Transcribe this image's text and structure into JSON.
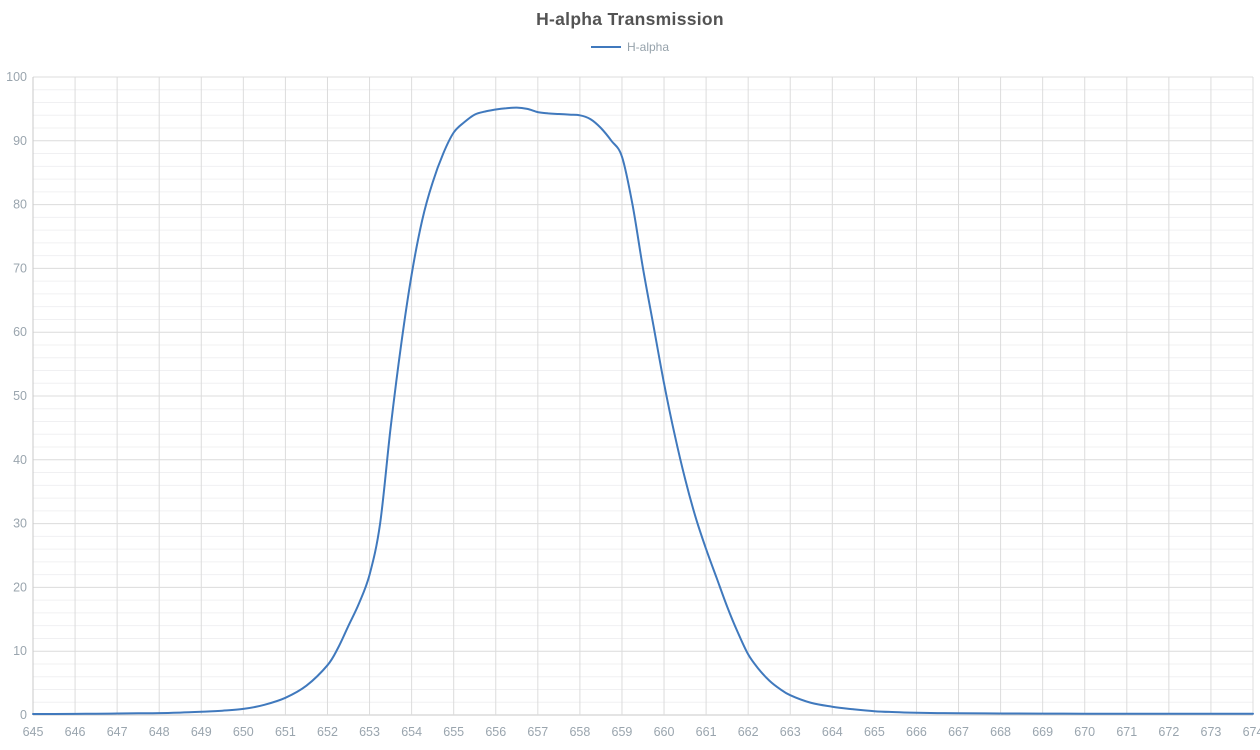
{
  "colors": {
    "series_blue": "#4079bd",
    "title_text": "#535353",
    "legend_text": "#96a2ab",
    "axis_label": "#9aa5ae",
    "grid_major": "#dcdcdc",
    "grid_minor": "#f0f0f2",
    "axis_line": "#c9c9c9",
    "background": "#ffffff"
  },
  "chart_data": {
    "type": "line",
    "title": "H-alpha Transmission",
    "xlabel": "",
    "ylabel": "",
    "xlim": [
      645,
      674
    ],
    "ylim": [
      0,
      100
    ],
    "x_ticks": [
      645,
      646,
      647,
      648,
      649,
      650,
      651,
      652,
      653,
      654,
      655,
      656,
      657,
      658,
      659,
      660,
      661,
      662,
      663,
      664,
      665,
      666,
      667,
      668,
      669,
      670,
      671,
      672,
      673,
      674
    ],
    "y_ticks": [
      0,
      10,
      20,
      30,
      40,
      50,
      60,
      70,
      80,
      90,
      100
    ],
    "y_minor_step": 2,
    "grid": true,
    "legend_position": "top",
    "series": [
      {
        "name": "H-alpha",
        "color": "#4079bd",
        "points": [
          [
            645,
            0.15
          ],
          [
            645.5,
            0.16
          ],
          [
            646,
            0.18
          ],
          [
            646.5,
            0.2
          ],
          [
            647,
            0.23
          ],
          [
            647.5,
            0.26
          ],
          [
            648,
            0.3
          ],
          [
            648.5,
            0.38
          ],
          [
            649,
            0.5
          ],
          [
            649.5,
            0.68
          ],
          [
            650,
            0.95
          ],
          [
            650.5,
            1.6
          ],
          [
            651,
            2.7
          ],
          [
            651.5,
            4.6
          ],
          [
            652,
            7.8
          ],
          [
            652.25,
            10.5
          ],
          [
            652.5,
            14
          ],
          [
            652.75,
            17.5
          ],
          [
            653,
            22
          ],
          [
            653.25,
            30
          ],
          [
            653.5,
            45
          ],
          [
            653.75,
            58
          ],
          [
            654,
            69
          ],
          [
            654.25,
            77.5
          ],
          [
            654.5,
            83.5
          ],
          [
            654.75,
            88
          ],
          [
            655,
            91.3
          ],
          [
            655.25,
            92.9
          ],
          [
            655.5,
            94.1
          ],
          [
            655.75,
            94.6
          ],
          [
            656,
            94.9
          ],
          [
            656.25,
            95.1
          ],
          [
            656.5,
            95.2
          ],
          [
            656.75,
            95.0
          ],
          [
            657,
            94.5
          ],
          [
            657.25,
            94.3
          ],
          [
            657.5,
            94.2
          ],
          [
            657.75,
            94.1
          ],
          [
            658,
            94.0
          ],
          [
            658.25,
            93.4
          ],
          [
            658.5,
            92.0
          ],
          [
            658.75,
            90.0
          ],
          [
            659,
            87.5
          ],
          [
            659.25,
            80
          ],
          [
            659.5,
            70
          ],
          [
            659.75,
            61
          ],
          [
            660,
            52
          ],
          [
            660.25,
            44
          ],
          [
            660.5,
            37
          ],
          [
            660.75,
            31
          ],
          [
            661,
            26
          ],
          [
            661.25,
            21.5
          ],
          [
            661.5,
            17
          ],
          [
            661.75,
            13
          ],
          [
            662,
            9.5
          ],
          [
            662.25,
            7.2
          ],
          [
            662.5,
            5.4
          ],
          [
            662.75,
            4.1
          ],
          [
            663,
            3.1
          ],
          [
            663.5,
            1.9
          ],
          [
            664,
            1.3
          ],
          [
            664.5,
            0.9
          ],
          [
            665,
            0.6
          ],
          [
            665.5,
            0.45
          ],
          [
            666,
            0.35
          ],
          [
            666.5,
            0.3
          ],
          [
            667,
            0.27
          ],
          [
            668,
            0.24
          ],
          [
            669,
            0.22
          ],
          [
            670,
            0.2
          ],
          [
            671,
            0.2
          ],
          [
            672,
            0.2
          ],
          [
            673,
            0.2
          ],
          [
            674,
            0.2
          ]
        ]
      }
    ]
  }
}
